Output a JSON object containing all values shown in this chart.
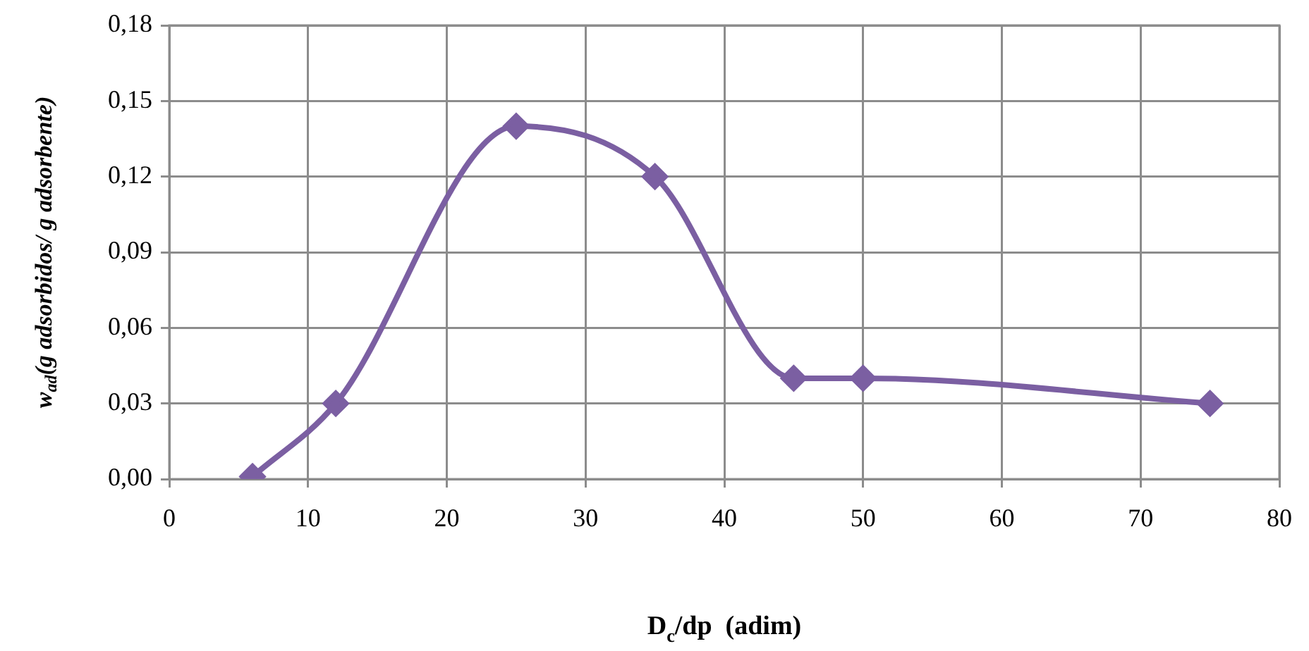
{
  "chart_data": {
    "type": "line",
    "xlabel": "D$_{c}$/dp  (adim)",
    "ylabel": "w$_{ad}$(g adsorbidos/ g adsorbente)",
    "x": [
      6,
      12,
      25,
      35,
      45,
      50,
      75
    ],
    "series": [
      {
        "color": "#7b5fa2",
        "values": [
          0.001,
          0.03,
          0.14,
          0.12,
          0.04,
          0.04,
          0.03
        ]
      }
    ],
    "xlim": [
      0,
      80
    ],
    "xticks": [
      0,
      10,
      20,
      30,
      40,
      50,
      60,
      70,
      80
    ],
    "ylim": [
      0,
      0.18
    ],
    "yticks": [
      {
        "value": 0,
        "label": "0,00"
      },
      {
        "value": 0.03,
        "label": "0,03"
      },
      {
        "value": 0.06,
        "label": "0,06"
      },
      {
        "value": 0.09,
        "label": "0,09"
      },
      {
        "value": 0.12,
        "label": "0,12"
      },
      {
        "value": 0.15,
        "label": "0,15"
      },
      {
        "value": 0.18,
        "label": "0,18"
      }
    ],
    "grid": true,
    "marker": "diamond",
    "line_style": "solid"
  }
}
